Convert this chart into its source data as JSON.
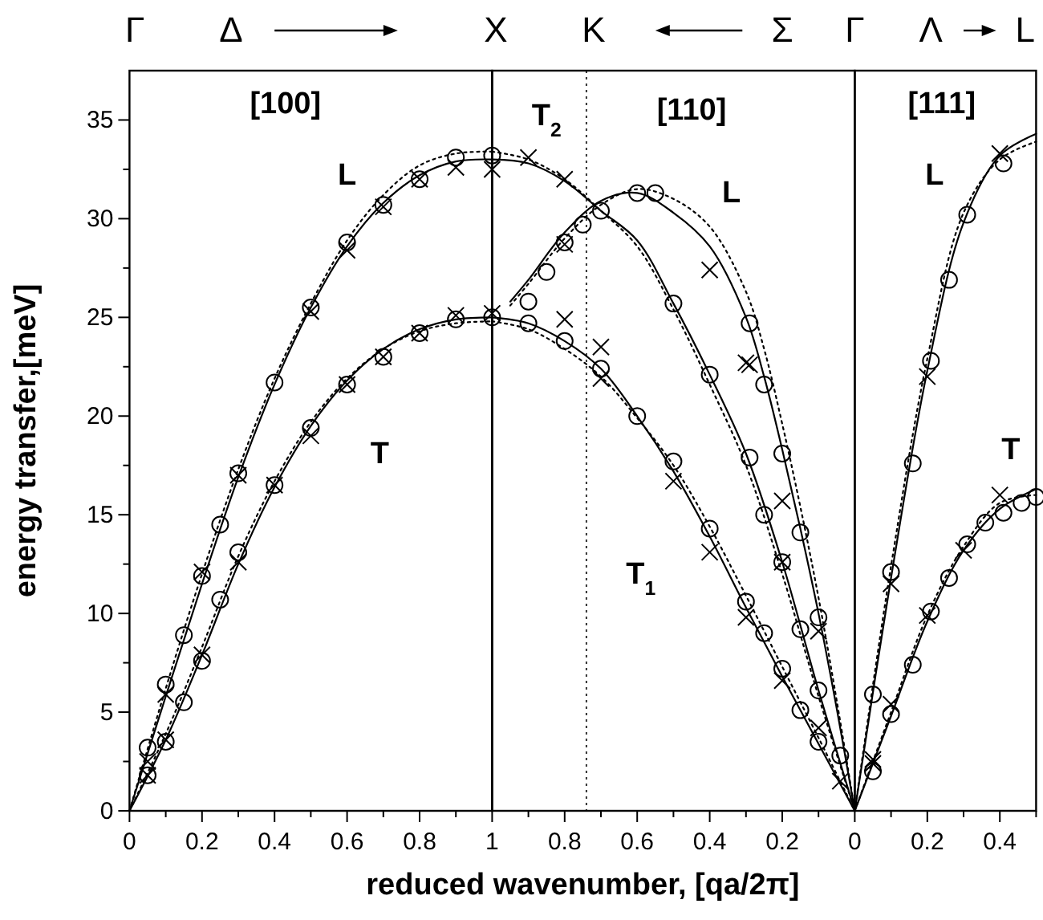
{
  "chart_data": [
    {
      "type": "line",
      "ylabel": "energy transfer,[meV]",
      "xlim": [
        0,
        1
      ],
      "ylim": [
        0,
        37.5
      ],
      "xticks": [
        0,
        {
          "value": 0.1,
          "label": null
        },
        0.2,
        {
          "value": 0.3,
          "label": null
        },
        0.4,
        {
          "value": 0.5,
          "label": null
        },
        0.6,
        {
          "value": 0.7,
          "label": null
        },
        0.8,
        {
          "value": 0.9,
          "label": null
        },
        1
      ],
      "yticks": [
        0,
        {
          "value": 2.5,
          "label": null
        },
        5,
        {
          "value": 7.5,
          "label": null
        },
        10,
        {
          "value": 12.5,
          "label": null
        },
        15,
        {
          "value": 17.5,
          "label": null
        },
        20,
        {
          "value": 22.5,
          "label": null
        },
        25,
        {
          "value": 27.5,
          "label": null
        },
        30,
        {
          "value": 32.5,
          "label": null
        },
        35
      ],
      "grid": false,
      "annotations": [
        "Γ",
        "Δ",
        "X",
        "[100]",
        "L",
        "T"
      ],
      "series": [
        {
          "line_style": "solid",
          "color": "#000000",
          "x": [
            0,
            0.1,
            0.2,
            0.3,
            0.4,
            0.5,
            0.6,
            0.7,
            0.8,
            0.9,
            1.0
          ],
          "values": [
            0,
            5.8,
            11.5,
            16.9,
            21.6,
            25.5,
            28.6,
            30.8,
            32.2,
            32.9,
            33.0
          ]
        },
        {
          "line_style": "solid",
          "color": "#000000",
          "x": [
            0,
            0.1,
            0.2,
            0.3,
            0.4,
            0.5,
            0.6,
            0.7,
            0.8,
            0.9,
            1.0
          ],
          "values": [
            0,
            3.6,
            7.9,
            12.5,
            16.4,
            19.5,
            21.8,
            23.4,
            24.4,
            24.9,
            25.0
          ]
        },
        {
          "line_style": "dotted",
          "color": "#000000",
          "x": [
            0,
            0.1,
            0.2,
            0.3,
            0.4,
            0.5,
            0.6,
            0.7,
            0.8,
            0.9,
            1.0
          ],
          "values": [
            0,
            6.2,
            12.0,
            17.3,
            21.9,
            25.7,
            28.9,
            31.2,
            32.7,
            33.3,
            33.4
          ]
        },
        {
          "line_style": "dotted",
          "color": "#000000",
          "x": [
            0,
            0.1,
            0.2,
            0.3,
            0.4,
            0.5,
            0.6,
            0.7,
            0.8,
            0.9,
            1.0
          ],
          "values": [
            0,
            3.9,
            8.3,
            12.9,
            16.7,
            19.7,
            21.9,
            23.4,
            24.3,
            24.7,
            24.8
          ]
        },
        {
          "type": "scatter",
          "marker": "circle",
          "color": "#000000",
          "x": [
            0.05,
            0.1,
            0.15,
            0.2,
            0.25,
            0.3,
            0.4,
            0.5,
            0.6,
            0.7,
            0.8,
            0.9,
            1.0,
            0.05,
            0.1,
            0.15,
            0.2,
            0.25,
            0.3,
            0.4,
            0.5,
            0.6,
            0.7,
            0.8,
            0.9,
            1.0
          ],
          "values": [
            3.2,
            6.4,
            8.9,
            11.9,
            14.5,
            17.1,
            21.7,
            25.5,
            28.8,
            30.7,
            32.0,
            33.1,
            33.2,
            1.8,
            3.5,
            5.5,
            7.6,
            10.7,
            13.1,
            16.5,
            19.4,
            21.6,
            23.0,
            24.2,
            24.9,
            25.0
          ]
        },
        {
          "type": "scatter",
          "marker": "cross",
          "color": "#000000",
          "x": [
            0.05,
            0.1,
            0.2,
            0.3,
            0.5,
            0.6,
            0.7,
            0.8,
            0.9,
            1.0,
            0.05,
            0.1,
            0.2,
            0.3,
            0.4,
            0.5,
            0.6,
            0.7,
            0.8,
            0.9,
            1.0
          ],
          "values": [
            2.5,
            5.9,
            12.1,
            17.0,
            25.3,
            28.4,
            30.6,
            32.0,
            32.6,
            32.5,
            1.8,
            3.6,
            7.9,
            12.6,
            16.5,
            19.0,
            21.6,
            23.0,
            24.2,
            25.1,
            25.2
          ]
        }
      ]
    },
    {
      "type": "line",
      "xlabel": "reduced wavenumber, [qa/2π]",
      "xlim": [
        1,
        0
      ],
      "ylim": [
        0,
        37.5
      ],
      "tick_labels": "x",
      "xticks": [
        {
          "value": 0.9,
          "label": null
        },
        0.8,
        {
          "value": 0.7,
          "label": null
        },
        0.6,
        {
          "value": 0.5,
          "label": null
        },
        0.4,
        {
          "value": 0.3,
          "label": null
        },
        0.2,
        {
          "value": 0.1,
          "label": null
        },
        0
      ],
      "grid": false,
      "ref_lines": [
        {
          "axis": "x",
          "value": 0.74,
          "line_style": "dotted"
        }
      ],
      "annotations": [
        "K",
        "Σ",
        "Γ",
        "T$_{2}$",
        "[110]",
        "L",
        "T$_{1}$"
      ],
      "series": [
        {
          "line_style": "solid",
          "color": "#000000",
          "x": [
            0.95,
            0.9,
            0.8,
            0.7,
            0.6,
            0.5,
            0.4,
            0.3,
            0.25,
            0.2,
            0.15,
            0.1,
            0.05,
            0
          ],
          "values": [
            25.8,
            26.9,
            29.3,
            30.9,
            31.3,
            30.3,
            28.6,
            25.0,
            22.0,
            18.3,
            14.3,
            10.0,
            5.2,
            0
          ]
        },
        {
          "line_style": "solid",
          "color": "#000000",
          "x": [
            1,
            0.9,
            0.8,
            0.7,
            0.6,
            0.5,
            0.4,
            0.3,
            0.2,
            0.1,
            0
          ],
          "values": [
            33.0,
            32.8,
            31.9,
            30.4,
            28.9,
            25.7,
            22.1,
            18.1,
            12.6,
            6.1,
            0
          ]
        },
        {
          "line_style": "solid",
          "color": "#000000",
          "x": [
            1,
            0.9,
            0.8,
            0.7,
            0.6,
            0.5,
            0.4,
            0.3,
            0.2,
            0.1,
            0
          ],
          "values": [
            25.0,
            24.7,
            23.8,
            22.4,
            20.0,
            17.2,
            13.9,
            10.3,
            6.8,
            3.4,
            0
          ]
        },
        {
          "line_style": "dotted",
          "color": "#000000",
          "x": [
            0.95,
            0.9,
            0.8,
            0.7,
            0.6,
            0.5,
            0.4,
            0.3,
            0.25,
            0.2,
            0.15,
            0.1,
            0.05,
            0
          ],
          "values": [
            25.6,
            26.7,
            29.0,
            30.7,
            31.5,
            31.0,
            29.6,
            26.3,
            23.4,
            19.6,
            15.4,
            10.8,
            5.6,
            0
          ]
        },
        {
          "line_style": "dotted",
          "color": "#000000",
          "x": [
            1,
            0.9,
            0.8,
            0.7,
            0.6,
            0.5,
            0.4,
            0.3,
            0.2,
            0.1,
            0
          ],
          "values": [
            33.4,
            33.0,
            32.0,
            30.4,
            28.6,
            25.4,
            21.6,
            17.5,
            12.0,
            5.8,
            0
          ]
        },
        {
          "line_style": "dotted",
          "color": "#000000",
          "x": [
            1,
            0.9,
            0.8,
            0.7,
            0.6,
            0.5,
            0.4,
            0.3,
            0.2,
            0.1,
            0
          ],
          "values": [
            24.8,
            24.4,
            23.4,
            22.0,
            19.9,
            17.5,
            14.4,
            10.9,
            7.3,
            3.7,
            0
          ]
        },
        {
          "type": "scatter",
          "marker": "circle",
          "color": "#000000",
          "x": [
            0.9,
            0.8,
            0.7,
            0.6,
            0.5,
            0.4,
            0.3,
            0.25,
            0.2,
            0.15,
            0.1,
            0.9,
            0.85,
            0.8,
            0.75,
            0.7,
            0.6,
            0.55,
            0.5,
            0.4,
            0.29,
            0.25,
            0.2,
            0.15,
            0.1,
            0.04,
            0.29,
            0.25,
            0.2,
            0.15,
            0.1
          ],
          "values": [
            24.7,
            23.8,
            22.4,
            20.0,
            17.7,
            14.3,
            10.6,
            9.0,
            7.2,
            5.1,
            3.5,
            25.8,
            27.3,
            28.8,
            29.7,
            30.4,
            31.3,
            31.3,
            25.7,
            22.1,
            24.7,
            21.6,
            18.1,
            14.1,
            9.8,
            2.8,
            17.9,
            15.0,
            12.6,
            9.2,
            6.1
          ]
        },
        {
          "type": "scatter",
          "marker": "cross",
          "color": "#000000",
          "x": [
            0.9,
            0.8,
            0.8,
            0.7,
            0.7,
            0.5,
            0.4,
            0.3,
            0.2,
            0.04,
            0.8,
            0.4,
            0.3,
            0.29,
            0.2,
            0.1,
            0.2,
            0.1
          ],
          "values": [
            33.1,
            32.0,
            24.9,
            23.5,
            21.9,
            16.7,
            13.1,
            9.8,
            6.6,
            1.5,
            28.7,
            27.4,
            22.7,
            22.6,
            15.7,
            9.1,
            12.6,
            4.2
          ]
        }
      ]
    },
    {
      "type": "line",
      "xlim": [
        0,
        0.5
      ],
      "ylim": [
        0,
        37.5
      ],
      "tick_labels": "x",
      "xticks": [
        {
          "value": 0.1,
          "label": null
        },
        0.2,
        {
          "value": 0.3,
          "label": null
        },
        0.4,
        {
          "value": 0.5,
          "label": null
        }
      ],
      "grid": false,
      "annotations": [
        "Λ",
        "L",
        "[111]",
        "L",
        "T"
      ],
      "series": [
        {
          "line_style": "solid",
          "color": "#000000",
          "x": [
            0,
            0.1,
            0.2,
            0.3,
            0.4,
            0.5
          ],
          "values": [
            0,
            11.8,
            22.3,
            29.8,
            33.2,
            34.3
          ]
        },
        {
          "line_style": "solid",
          "color": "#000000",
          "x": [
            0,
            0.1,
            0.2,
            0.3,
            0.4,
            0.5
          ],
          "values": [
            0,
            4.8,
            9.6,
            13.2,
            15.3,
            16.3
          ]
        },
        {
          "line_style": "dotted",
          "color": "#000000",
          "x": [
            0,
            0.1,
            0.2,
            0.3,
            0.4,
            0.5
          ],
          "values": [
            0,
            12.4,
            22.9,
            30.3,
            33.0,
            33.9
          ]
        },
        {
          "line_style": "dotted",
          "color": "#000000",
          "x": [
            0,
            0.1,
            0.2,
            0.3,
            0.4,
            0.5
          ],
          "values": [
            0,
            5.0,
            9.9,
            13.4,
            15.6,
            16.0
          ]
        },
        {
          "type": "scatter",
          "marker": "circle",
          "color": "#000000",
          "x": [
            0.05,
            0.1,
            0.16,
            0.21,
            0.26,
            0.31,
            0.41,
            0.05,
            0.1,
            0.16,
            0.21,
            0.26,
            0.31,
            0.36,
            0.41,
            0.46,
            0.5
          ],
          "values": [
            5.9,
            12.1,
            17.6,
            22.8,
            26.9,
            30.2,
            32.8,
            2.0,
            4.9,
            7.4,
            10.1,
            11.8,
            13.5,
            14.6,
            15.1,
            15.6,
            15.9
          ]
        },
        {
          "type": "scatter",
          "marker": "cross",
          "color": "#000000",
          "x": [
            0.05,
            0.1,
            0.2,
            0.4,
            0.05,
            0.1,
            0.2,
            0.3,
            0.4
          ],
          "values": [
            2.6,
            11.5,
            22.0,
            33.3,
            2.4,
            5.4,
            9.9,
            13.2,
            16.0
          ]
        }
      ]
    }
  ]
}
